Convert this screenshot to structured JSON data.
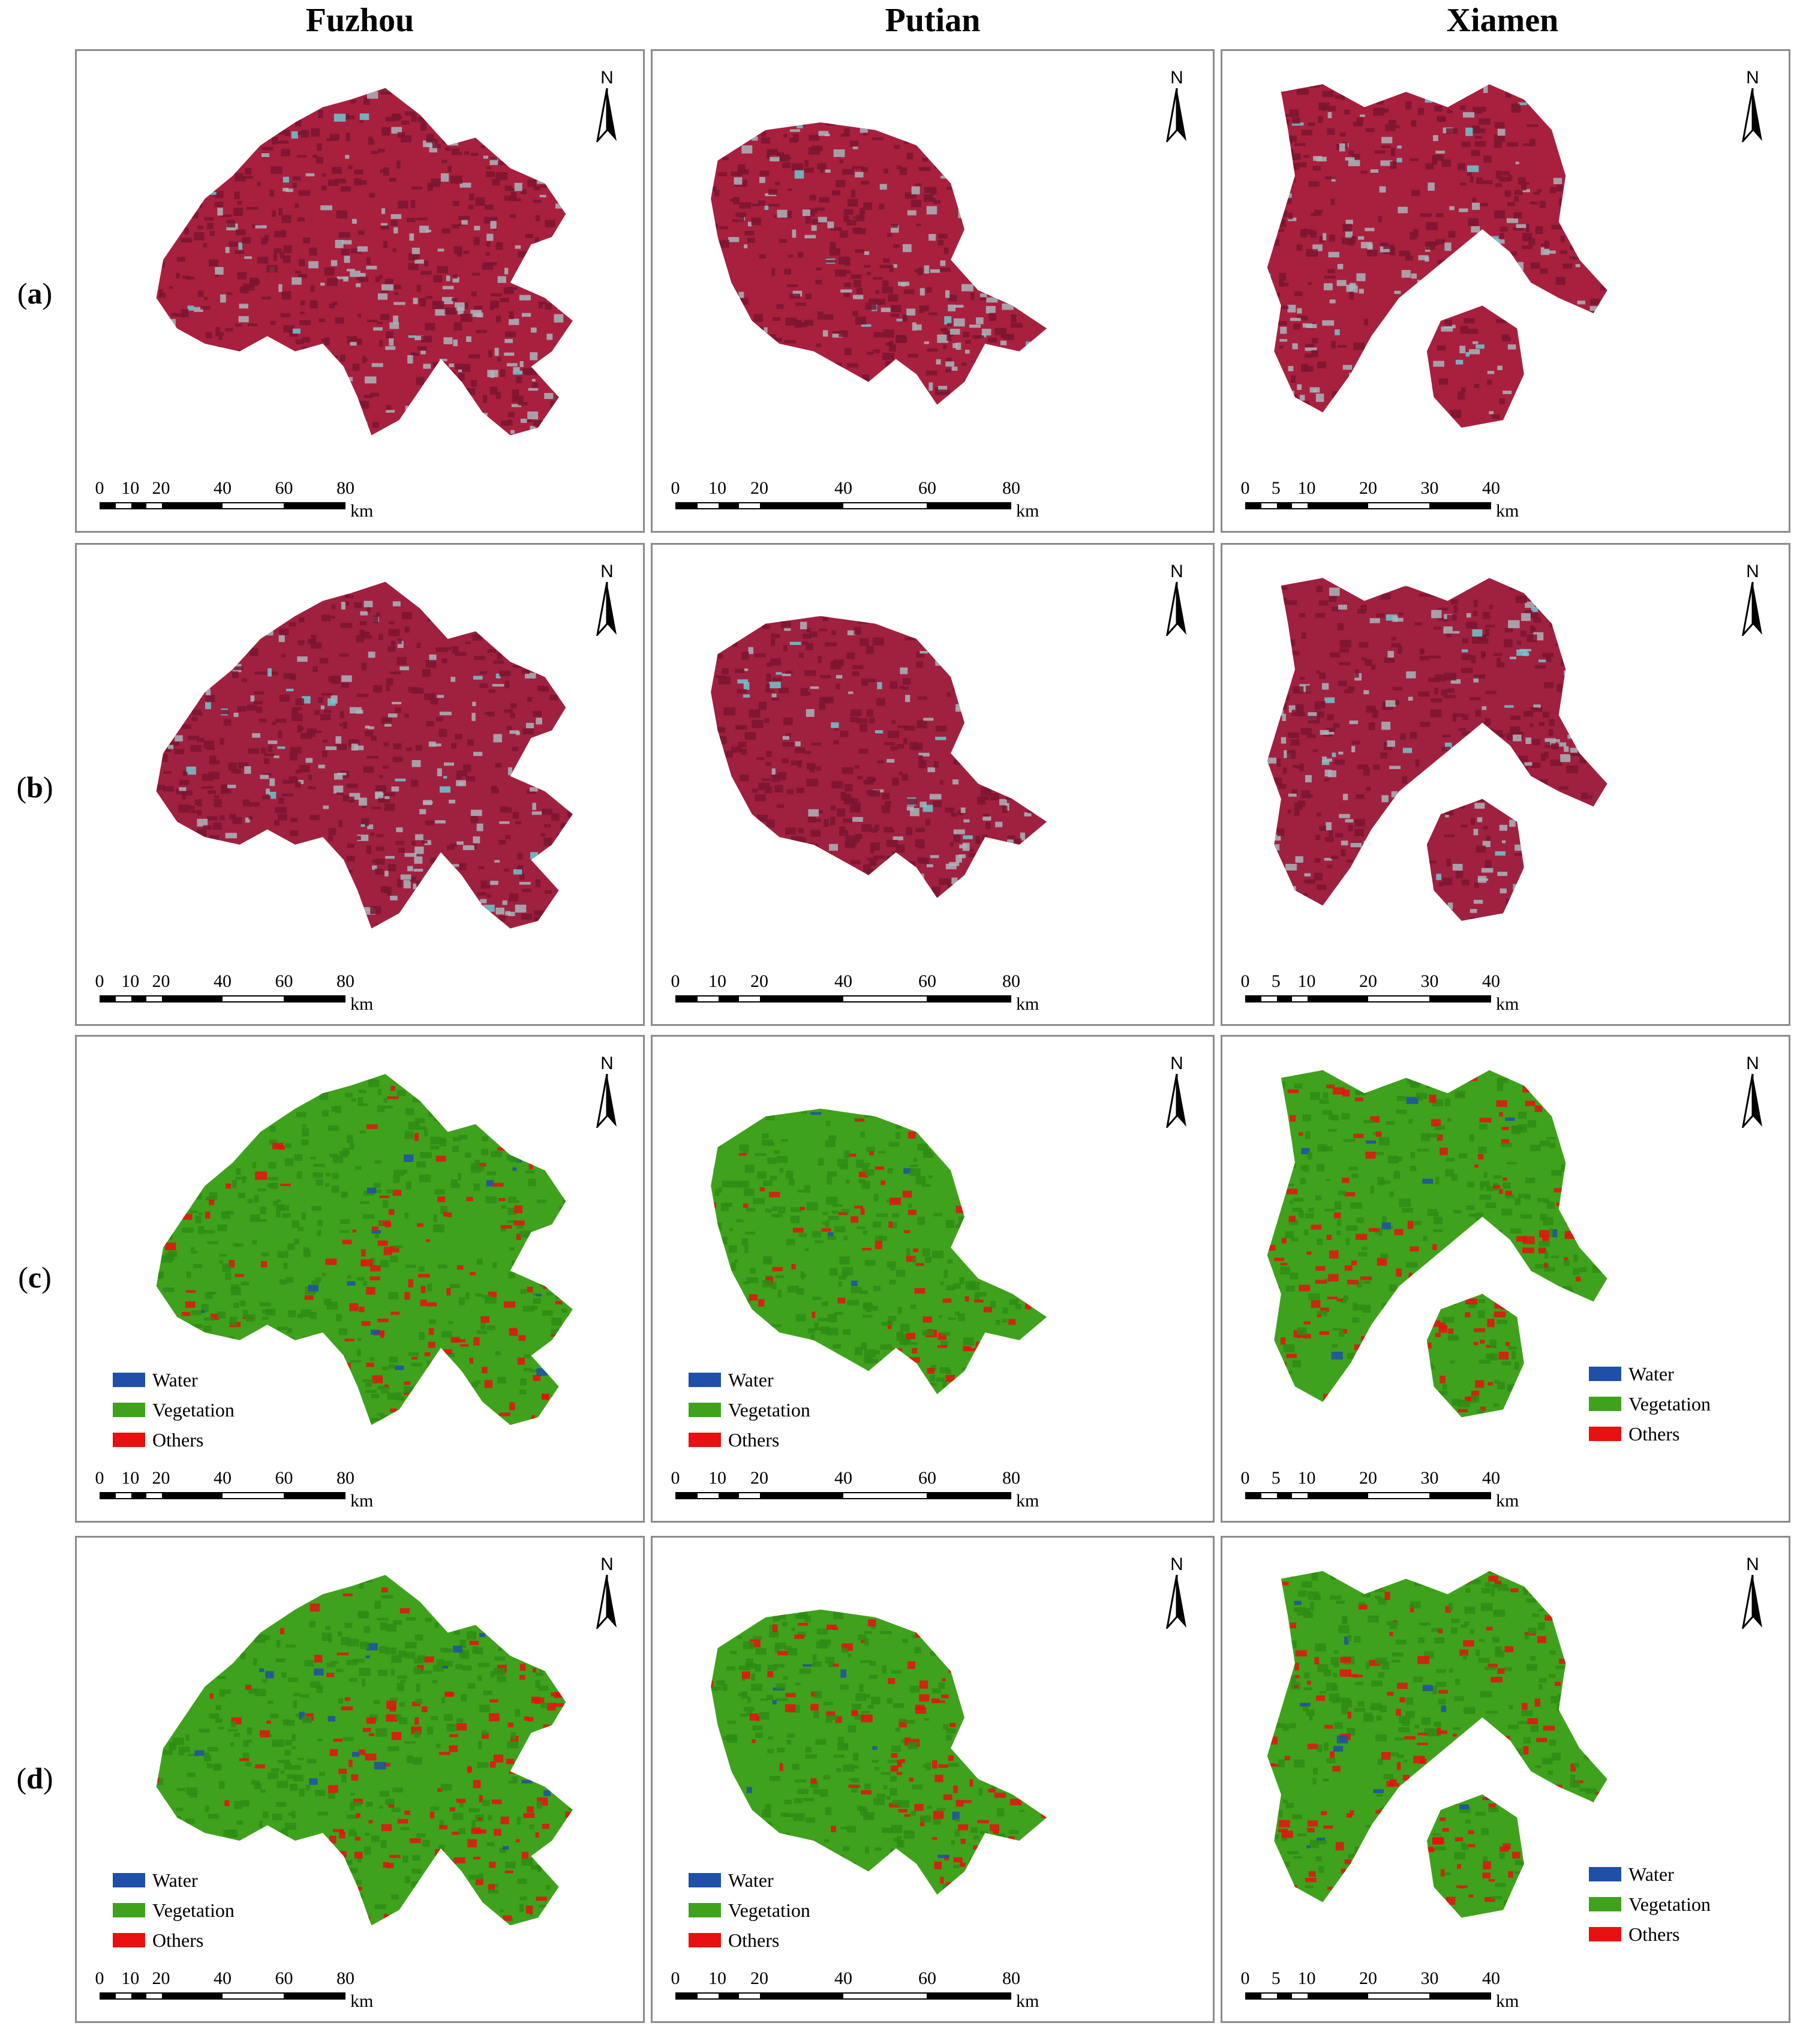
{
  "columns": {
    "fuzhou": "Fuzhou",
    "putian": "Putian",
    "xiamen": "Xiamen"
  },
  "rows": {
    "a": {
      "open": "(",
      "letter": "a",
      "close": ")"
    },
    "b": {
      "open": "(",
      "letter": "b",
      "close": ")"
    },
    "c": {
      "open": "(",
      "letter": "c",
      "close": ")"
    },
    "d": {
      "open": "(",
      "letter": "d",
      "close": ")"
    }
  },
  "north_label": "N",
  "scale": {
    "fuzhou": {
      "ticks": [
        "0",
        "10",
        "20",
        "40",
        "60",
        "80"
      ],
      "unit": "km"
    },
    "putian": {
      "ticks": [
        "0",
        "10",
        "20",
        "40",
        "60",
        "80"
      ],
      "unit": "km"
    },
    "xiamen": {
      "ticks": [
        "0",
        "5",
        "10",
        "20",
        "30",
        "40"
      ],
      "unit": "km"
    }
  },
  "legend": {
    "water": "Water",
    "vegetation": "Vegetation",
    "others": "Others"
  },
  "colors": {
    "water": "#1f4fa8",
    "vegetation": "#3fa21c",
    "others": "#e81010",
    "false_color_a": "#a8203e",
    "false_color_b": "#a0203f",
    "urban": "#a9b6bb",
    "river": "#6ec8d2"
  }
}
